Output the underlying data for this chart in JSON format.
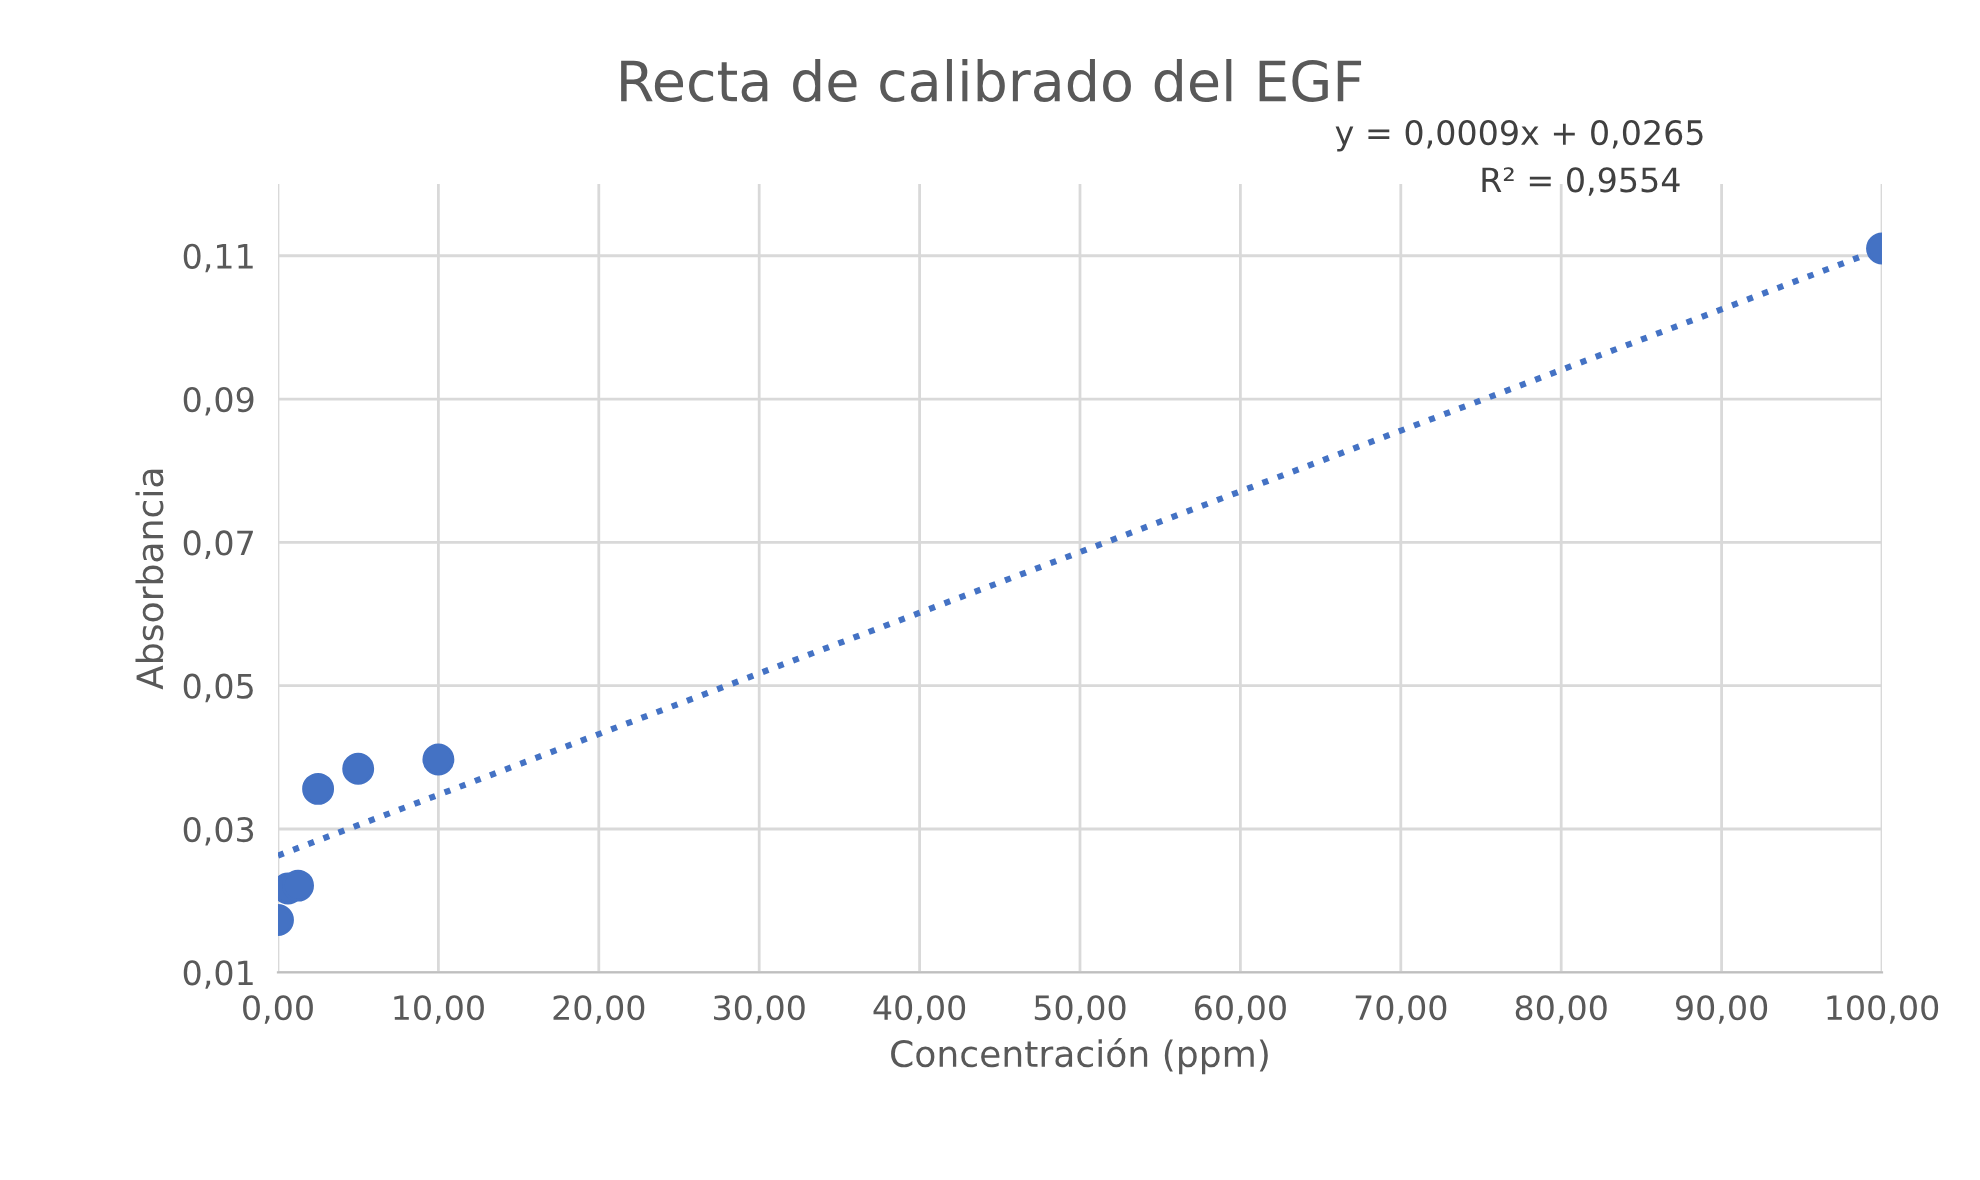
{
  "chart_data": {
    "type": "scatter",
    "title": "Recta de calibrado del EGF",
    "xlabel": "Concentración (ppm)",
    "ylabel": "Absorbancia",
    "series": [
      {
        "color": "#4472c4",
        "x": [
          0,
          0.625,
          1.25,
          2.5,
          5,
          10,
          100
        ],
        "values": [
          0.0173,
          0.0217,
          0.0221,
          0.0356,
          0.0384,
          0.0397,
          0.111
        ],
        "marker": "circle"
      },
      {
        "type": "line",
        "color": "#4472c4",
        "x": [
          0,
          100
        ],
        "values": [
          0.0263,
          0.111
        ],
        "line_style": "dotted",
        "marker": "none"
      }
    ],
    "annotations": [
      "y = 0,0009x + 0,0265",
      "R² = 0,9554"
    ],
    "xlim": [
      0,
      100
    ],
    "ylim": [
      0.01,
      0.12
    ],
    "xticks": [
      {
        "value": 0,
        "label": "0,00"
      },
      {
        "value": 10,
        "label": "10,00"
      },
      {
        "value": 20,
        "label": "20,00"
      },
      {
        "value": 30,
        "label": "30,00"
      },
      {
        "value": 40,
        "label": "40,00"
      },
      {
        "value": 50,
        "label": "50,00"
      },
      {
        "value": 60,
        "label": "60,00"
      },
      {
        "value": 70,
        "label": "70,00"
      },
      {
        "value": 80,
        "label": "80,00"
      },
      {
        "value": 90,
        "label": "90,00"
      },
      {
        "value": 100,
        "label": "100,00"
      }
    ],
    "yticks": [
      {
        "value": 0.01,
        "label": "0,01"
      },
      {
        "value": 0.03,
        "label": "0,03"
      },
      {
        "value": 0.05,
        "label": "0,05"
      },
      {
        "value": 0.07,
        "label": "0,07"
      },
      {
        "value": 0.09,
        "label": "0,09"
      },
      {
        "value": 0.11,
        "label": "0,11"
      }
    ],
    "grid": true,
    "legend": false
  }
}
